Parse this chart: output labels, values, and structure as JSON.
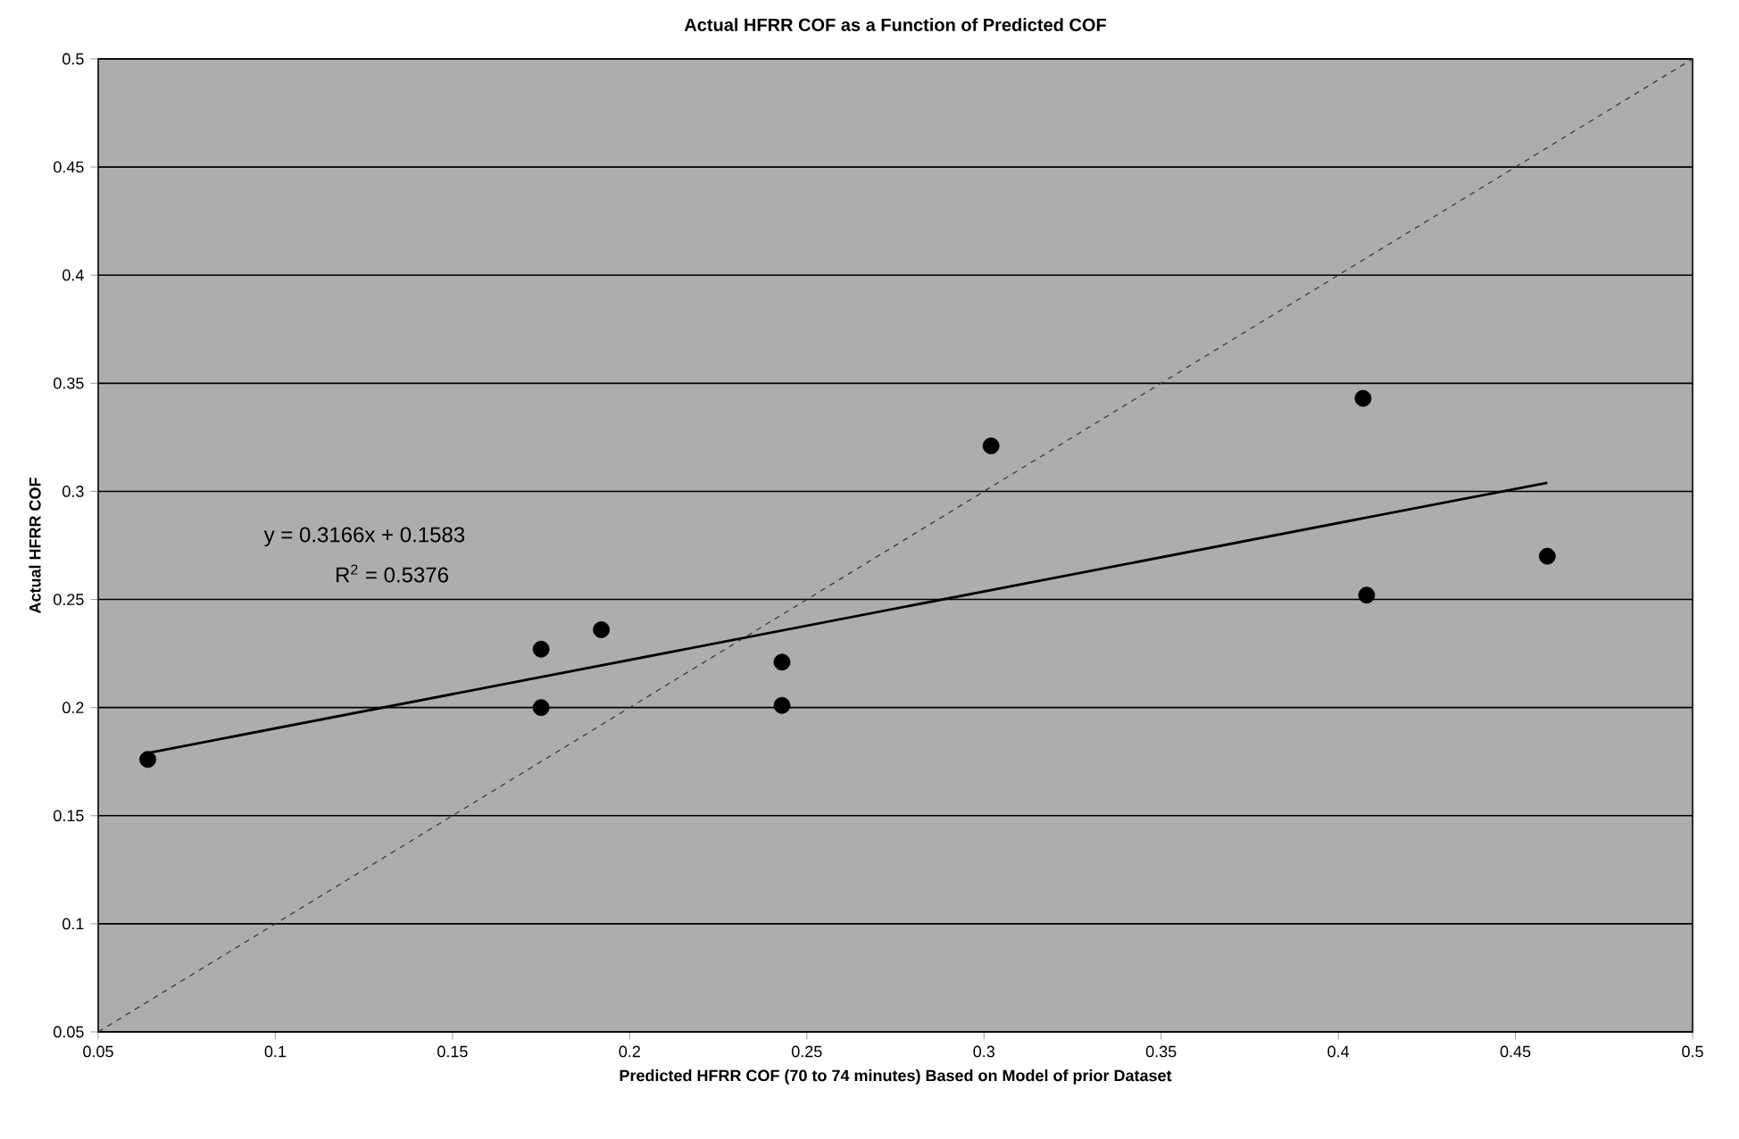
{
  "chart_data": {
    "type": "scatter",
    "title": "Actual HFRR COF as a Function of Predicted COF",
    "xlabel": "Predicted HFRR COF (70 to 74 minutes) Based on Model of prior Dataset",
    "ylabel": "Actual HFRR COF",
    "series": [
      {
        "color": "#000000",
        "marker": "circle",
        "x": [
          0.064,
          0.175,
          0.175,
          0.192,
          0.243,
          0.243,
          0.302,
          0.407,
          0.408,
          0.459
        ],
        "values": [
          0.176,
          0.227,
          0.2,
          0.236,
          0.221,
          0.201,
          0.321,
          0.343,
          0.252,
          0.27
        ]
      },
      {
        "type": "line",
        "color": "#000000",
        "line_style": "solid",
        "marker": "none",
        "x": [
          0.064,
          0.459
        ],
        "values": [
          0.179,
          0.304
        ]
      },
      {
        "type": "line",
        "color": "#333333",
        "line_style": "dashed",
        "marker": "none",
        "x": [
          0.05,
          0.5
        ],
        "values": [
          0.05,
          0.5
        ]
      }
    ],
    "annotations": [
      "y = 0.3166x + 0.1583",
      "R$^{2}$ = 0.5376"
    ],
    "xlim": [
      0.05,
      0.5
    ],
    "ylim": [
      0.05,
      0.5
    ],
    "xticks": [
      0.05,
      0.1,
      0.15,
      0.2,
      0.25,
      0.3,
      0.35,
      0.4,
      0.45,
      0.5
    ],
    "yticks": [
      0.05,
      0.1,
      0.15,
      0.2,
      0.25,
      0.3,
      0.35,
      0.4,
      0.45,
      0.5
    ],
    "grid": "y"
  }
}
